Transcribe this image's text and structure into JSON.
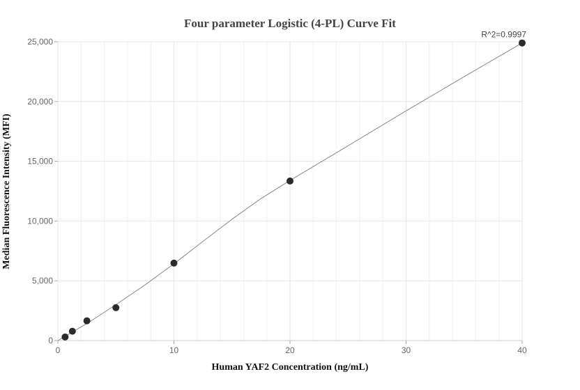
{
  "chart_data": {
    "type": "scatter",
    "title": "Four parameter Logistic (4-PL) Curve Fit",
    "xlabel": "Human YAF2 Concentration (ng/mL)",
    "ylabel": "Median Fluorescence Intensity (MFI)",
    "xlim": [
      0,
      40
    ],
    "ylim": [
      0,
      25000
    ],
    "x_ticks": [
      0,
      10,
      20,
      30,
      40
    ],
    "y_ticks": [
      0,
      5000,
      10000,
      15000,
      20000,
      25000
    ],
    "x_tick_labels": [
      "0",
      "10",
      "20",
      "30",
      "40"
    ],
    "y_tick_labels": [
      "0",
      "5,000",
      "10,000",
      "15,000",
      "20,000",
      "25,000"
    ],
    "grid": true,
    "series": [
      {
        "points": [
          {
            "x": 0.625,
            "y": 300
          },
          {
            "x": 1.25,
            "y": 780
          },
          {
            "x": 2.5,
            "y": 1650
          },
          {
            "x": 5,
            "y": 2750
          },
          {
            "x": 10,
            "y": 6480
          },
          {
            "x": 20,
            "y": 13350
          },
          {
            "x": 40,
            "y": 24900
          }
        ]
      }
    ],
    "fit_curve": {
      "x": [
        0,
        2.5,
        5,
        7.5,
        10,
        12.5,
        15,
        17.5,
        20,
        25,
        30,
        35,
        40
      ],
      "y": [
        0,
        1420,
        3000,
        4650,
        6420,
        8300,
        10150,
        11880,
        13400,
        16300,
        19220,
        22080,
        24900
      ]
    },
    "annotations": [
      {
        "text": "R^2=0.9997",
        "x": 40,
        "y": 24900
      }
    ],
    "colors": {
      "points": "#2b2b2b",
      "curve": "#888888",
      "grid": "#e6e6e6",
      "axis": "#cccccc"
    }
  }
}
